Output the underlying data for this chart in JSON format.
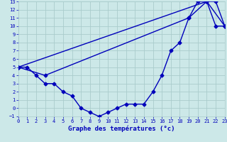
{
  "title": "",
  "xlabel": "Graphe des températures (°c)",
  "ylabel": "",
  "bg_color": "#cce8e8",
  "grid_color": "#aacccc",
  "line_color": "#0000bb",
  "xlim": [
    0,
    23
  ],
  "ylim": [
    -1,
    13
  ],
  "xticks": [
    0,
    1,
    2,
    3,
    4,
    5,
    6,
    7,
    8,
    9,
    10,
    11,
    12,
    13,
    14,
    15,
    16,
    17,
    18,
    19,
    20,
    21,
    22,
    23
  ],
  "yticks": [
    -1,
    0,
    1,
    2,
    3,
    4,
    5,
    6,
    7,
    8,
    9,
    10,
    11,
    12,
    13
  ],
  "series1_x": [
    0,
    1,
    2,
    3,
    4,
    5,
    6,
    7,
    8,
    9,
    10,
    11,
    12,
    13,
    14,
    15,
    16,
    17,
    18,
    19,
    20,
    21,
    22,
    23
  ],
  "series1_y": [
    5,
    5,
    4,
    3,
    3,
    2,
    1.5,
    0,
    -0.5,
    -1,
    -0.5,
    0,
    0.5,
    0.5,
    0.5,
    2,
    4,
    7,
    8,
    11,
    13,
    13,
    10,
    10
  ],
  "series2_x": [
    0,
    21,
    22,
    23
  ],
  "series2_y": [
    5,
    13,
    13,
    10
  ],
  "series3_x": [
    0,
    3,
    19,
    21,
    23
  ],
  "series3_y": [
    5,
    4,
    11,
    13,
    10
  ],
  "marker_size": 2.5,
  "line_width": 1.0,
  "xlabel_fontsize": 6.5,
  "tick_fontsize": 5
}
